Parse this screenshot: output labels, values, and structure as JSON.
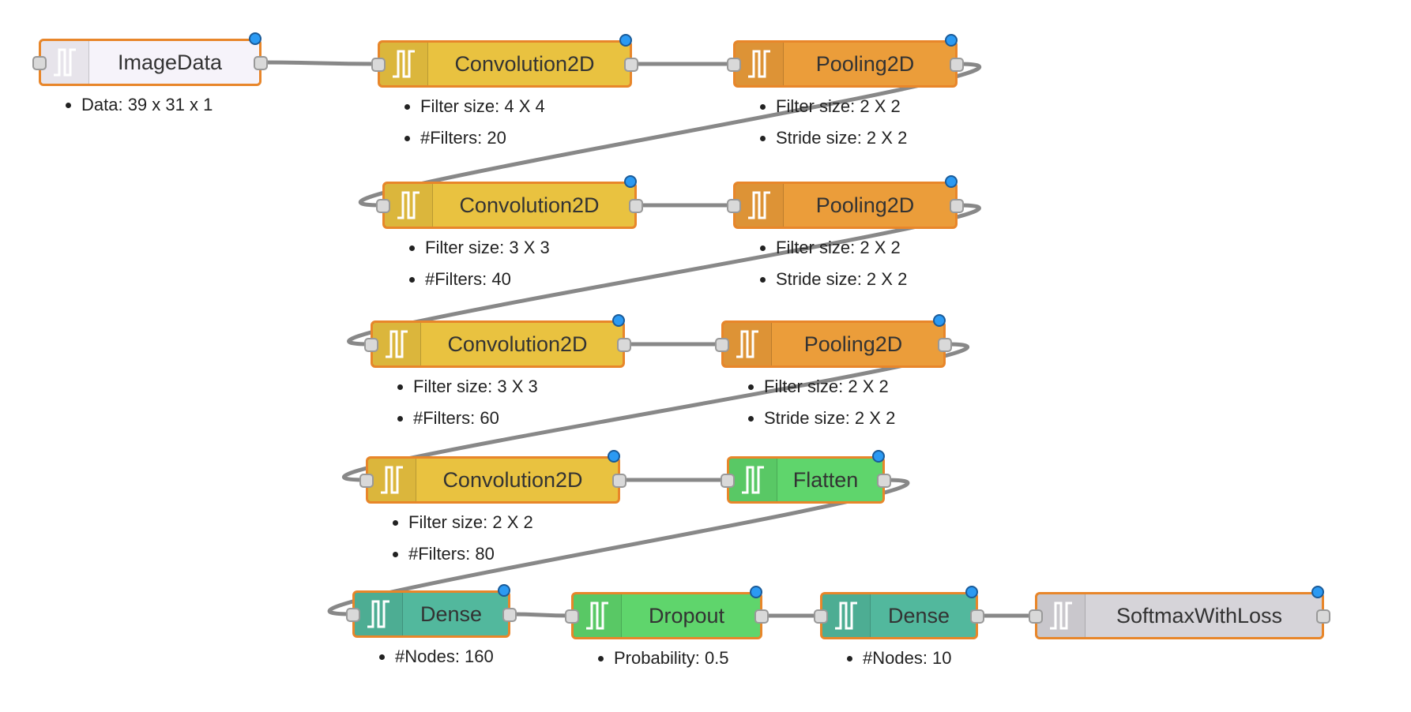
{
  "colors": {
    "image": "#f6f3fa",
    "convolution": "#e9c240",
    "pooling": "#eb9d3a",
    "flatten": "#5fd56c",
    "dense": "#52b89d",
    "dropout": "#5fd56c",
    "loss": "#d6d4d9",
    "wire": "#888888",
    "node_border": "#e8862a"
  },
  "icon": "pulse-wave-icon",
  "nodes": [
    {
      "id": "image-data",
      "label": "ImageData",
      "type": "image",
      "props": [
        "Data: 39 x 31 x 1"
      ]
    },
    {
      "id": "conv-1",
      "label": "Convolution2D",
      "type": "convolution",
      "props": [
        "Filter size: 4 X 4",
        "#Filters: 20"
      ]
    },
    {
      "id": "pool-1",
      "label": "Pooling2D",
      "type": "pooling",
      "props": [
        "Filter size: 2 X 2",
        "Stride size: 2 X 2"
      ]
    },
    {
      "id": "conv-2",
      "label": "Convolution2D",
      "type": "convolution",
      "props": [
        "Filter size: 3 X 3",
        "#Filters: 40"
      ]
    },
    {
      "id": "pool-2",
      "label": "Pooling2D",
      "type": "pooling",
      "props": [
        "Filter size: 2 X 2",
        "Stride size: 2 X 2"
      ]
    },
    {
      "id": "conv-3",
      "label": "Convolution2D",
      "type": "convolution",
      "props": [
        "Filter size: 3 X 3",
        "#Filters: 60"
      ]
    },
    {
      "id": "pool-3",
      "label": "Pooling2D",
      "type": "pooling",
      "props": [
        "Filter size: 2 X 2",
        "Stride size: 2 X 2"
      ]
    },
    {
      "id": "conv-4",
      "label": "Convolution2D",
      "type": "convolution",
      "props": [
        "Filter size: 2 X 2",
        "#Filters: 80"
      ]
    },
    {
      "id": "flatten",
      "label": "Flatten",
      "type": "flatten",
      "props": []
    },
    {
      "id": "dense-1",
      "label": "Dense",
      "type": "dense",
      "props": [
        "#Nodes: 160"
      ]
    },
    {
      "id": "dropout",
      "label": "Dropout",
      "type": "dropout",
      "props": [
        "Probability: 0.5"
      ]
    },
    {
      "id": "dense-2",
      "label": "Dense",
      "type": "dense",
      "props": [
        "#Nodes: 10"
      ]
    },
    {
      "id": "softmax",
      "label": "SoftmaxWithLoss",
      "type": "loss",
      "props": []
    }
  ],
  "connections": [
    [
      "image-data",
      "conv-1"
    ],
    [
      "conv-1",
      "pool-1"
    ],
    [
      "pool-1",
      "conv-2"
    ],
    [
      "conv-2",
      "pool-2"
    ],
    [
      "pool-2",
      "conv-3"
    ],
    [
      "conv-3",
      "pool-3"
    ],
    [
      "pool-3",
      "conv-4"
    ],
    [
      "conv-4",
      "flatten"
    ],
    [
      "flatten",
      "dense-1"
    ],
    [
      "dense-1",
      "dropout"
    ],
    [
      "dropout",
      "dense-2"
    ],
    [
      "dense-2",
      "softmax"
    ]
  ]
}
